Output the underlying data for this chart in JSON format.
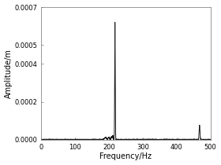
{
  "title": "",
  "xlabel": "Frequency/Hz",
  "ylabel": "Amplitude/m",
  "xlim": [
    0,
    500
  ],
  "ylim": [
    0,
    0.0007
  ],
  "yticks": [
    0.0,
    0.0002,
    0.0004,
    0.0005,
    0.0007
  ],
  "xticks": [
    0,
    100,
    200,
    300,
    400,
    500
  ],
  "main_peak_freq": 218,
  "main_peak_amp": 0.00062,
  "secondary_peak_freq": 468,
  "secondary_peak_amp": 7.5e-05,
  "noise_level": 1e-06,
  "line_color": "#1a1a1a",
  "background_color": "#ffffff",
  "line_width": 0.7,
  "spine_color": "#888888",
  "tick_color": "#888888"
}
